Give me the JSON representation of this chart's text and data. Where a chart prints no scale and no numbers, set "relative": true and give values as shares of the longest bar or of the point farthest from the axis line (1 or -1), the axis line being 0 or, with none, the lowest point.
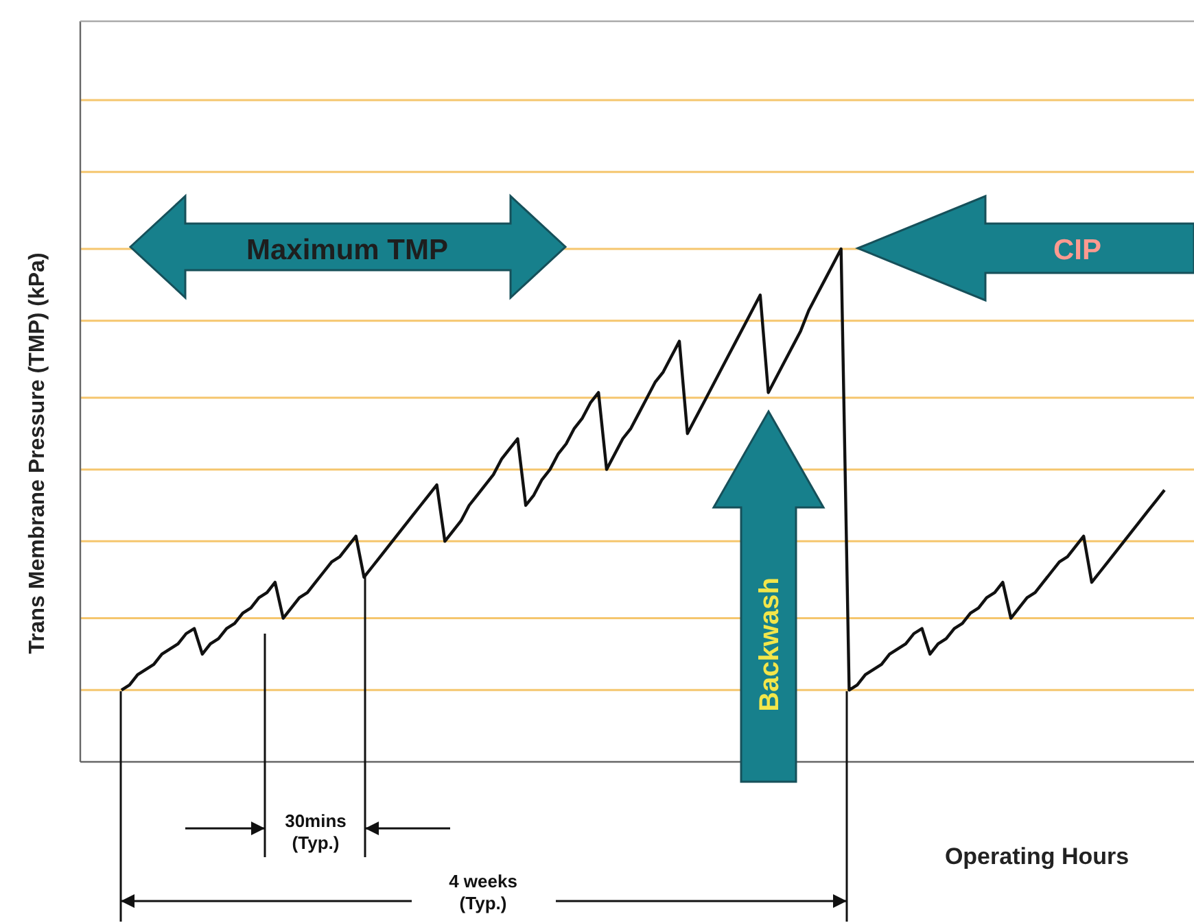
{
  "chart_data": {
    "type": "line",
    "relative": true,
    "xlabel": "Operating Hours",
    "ylabel": "Trans Membrane Pressure (TMP) (kPa)",
    "categories": [
      null,
      null,
      null,
      null,
      null,
      null,
      null,
      null,
      null,
      null,
      null,
      null,
      null,
      null,
      null,
      null,
      null,
      null,
      null,
      null,
      null,
      null,
      null,
      null,
      null,
      null,
      null,
      null,
      null,
      null,
      null,
      null,
      null,
      null,
      null,
      null,
      null,
      null,
      null,
      null,
      null,
      null,
      null,
      null,
      null,
      null,
      null,
      null,
      null,
      null,
      null,
      null,
      null,
      null,
      null,
      null,
      null,
      null,
      null,
      null,
      null,
      null,
      null,
      null,
      null,
      null,
      null,
      null,
      null,
      null,
      null,
      null,
      null,
      null,
      null,
      null,
      null,
      null,
      null,
      null,
      null,
      null,
      null,
      null,
      null,
      null,
      null,
      null,
      null,
      null,
      null,
      null,
      null,
      null,
      null,
      null,
      null,
      null,
      null,
      null,
      null,
      null,
      null,
      null,
      null,
      null,
      null,
      null,
      null,
      null,
      null,
      null,
      null,
      null,
      null,
      null,
      null,
      null,
      null,
      null,
      null,
      null,
      null,
      null,
      null,
      null,
      null,
      null,
      null,
      null
    ],
    "series": [
      {
        "color": "#111111",
        "values": [
          0.14,
          0.15,
          0.17,
          0.18,
          0.19,
          0.21,
          0.22,
          0.23,
          0.25,
          0.26,
          0.21,
          0.23,
          0.24,
          0.26,
          0.27,
          0.29,
          0.3,
          0.32,
          0.33,
          0.35,
          0.28,
          0.3,
          0.32,
          0.33,
          0.35,
          0.37,
          0.39,
          0.4,
          0.42,
          0.44,
          0.36,
          0.38,
          0.4,
          0.42,
          0.44,
          0.46,
          0.48,
          0.5,
          0.52,
          0.54,
          0.43,
          0.45,
          0.47,
          0.5,
          0.52,
          0.54,
          0.56,
          0.59,
          0.61,
          0.63,
          0.5,
          0.52,
          0.55,
          0.57,
          0.6,
          0.62,
          0.65,
          0.67,
          0.7,
          0.72,
          0.57,
          0.6,
          0.63,
          0.65,
          0.68,
          0.71,
          0.74,
          0.76,
          0.79,
          0.82,
          0.64,
          0.67,
          0.7,
          0.73,
          0.76,
          0.79,
          0.82,
          0.85,
          0.88,
          0.91,
          0.72,
          0.75,
          0.78,
          0.81,
          0.84,
          0.88,
          0.91,
          0.94,
          0.97,
          1,
          0.14,
          0.15,
          0.17,
          0.18,
          0.19,
          0.21,
          0.22,
          0.23,
          0.25,
          0.26,
          0.21,
          0.23,
          0.24,
          0.26,
          0.27,
          0.29,
          0.3,
          0.32,
          0.33,
          0.35,
          0.28,
          0.3,
          0.32,
          0.33,
          0.35,
          0.37,
          0.39,
          0.4,
          0.42,
          0.44,
          0.35,
          0.37,
          0.39,
          0.41,
          0.43,
          0.45,
          0.47,
          0.49,
          0.51,
          0.53
        ]
      }
    ],
    "annotations": [
      "Maximum TMP",
      "CIP",
      "Backwash",
      "30mins\n(Typ.)",
      "4 weeks\n(Typ.)"
    ],
    "ref_lines": [
      {
        "axis": "y",
        "value": 0.14,
        "color": "#f5c66e"
      },
      {
        "axis": "y",
        "value": 0.28,
        "color": "#f5c66e"
      },
      {
        "axis": "y",
        "value": 0.43,
        "color": "#f5c66e"
      },
      {
        "axis": "y",
        "value": 0.57,
        "color": "#f5c66e"
      },
      {
        "axis": "y",
        "value": 0.71,
        "color": "#f5c66e"
      },
      {
        "axis": "y",
        "value": 0.86,
        "color": "#f5c66e"
      },
      {
        "axis": "y",
        "value": 1,
        "color": "#f5c66e"
      },
      {
        "axis": "y",
        "value": 1.15,
        "color": "#f5c66e"
      },
      {
        "axis": "y",
        "value": 1.29,
        "color": "#f5c66e"
      }
    ]
  }
}
